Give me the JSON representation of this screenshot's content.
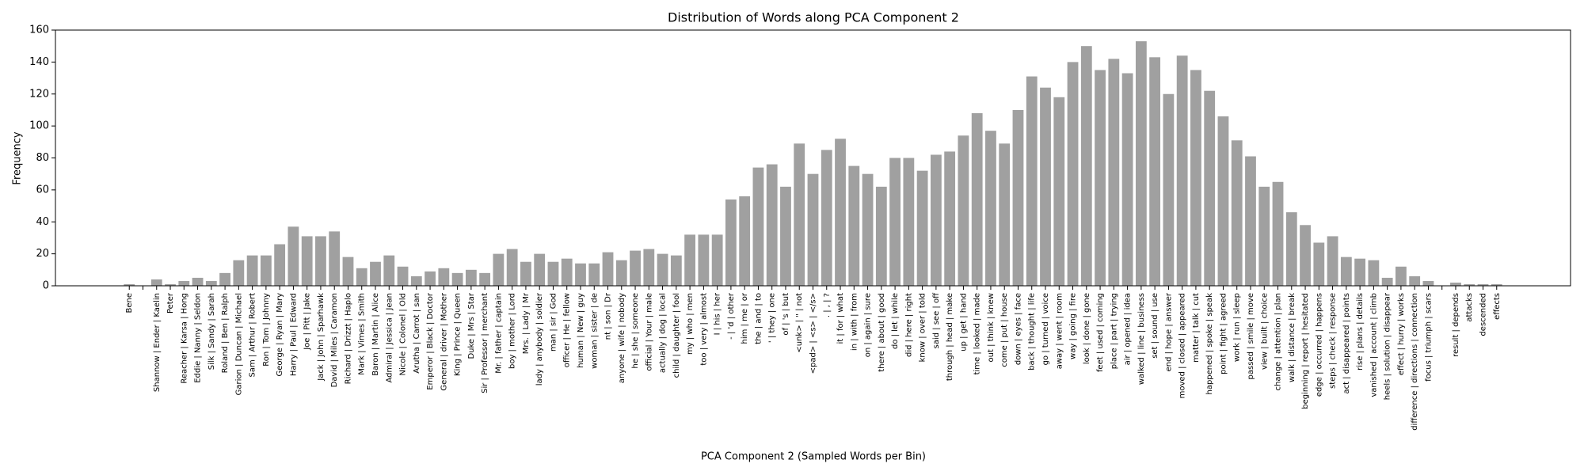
{
  "chart_data": {
    "type": "bar",
    "title": "Distribution of Words along PCA Component 2",
    "xlabel": "PCA Component 2 (Sampled Words per Bin)",
    "ylabel": "Frequency",
    "color": "#a0a0a0",
    "ylim": [
      0,
      160
    ],
    "yticks": [
      0,
      20,
      40,
      60,
      80,
      100,
      120,
      140,
      160
    ],
    "categories": [
      "Bene",
      null,
      "Shannow | Ender | Kaelin",
      "Peter",
      "Reacher | Karsa | Hong",
      "Eddie | Nanny | Seldon",
      "Silk | Sandy | Sarah",
      "Roland | Ben | Ralph",
      "Garion | Duncan | Michael",
      "Sam | Arthur | Robert",
      "Ron | Tom | Johnny",
      "George | Ryan | Mary",
      "Harry | Paul | Edward",
      "Joe | Pitt | Jake",
      "Jack | John | Sparhawk",
      "David | Miles | Caramon",
      "Richard | Drizzt | Haplo",
      "Mark | Vimes | Smith",
      "Baron | Martin | Alice",
      "Admiral | Jessica | Jean",
      "Nicole | Colonel | Old",
      "Arutha | Carrot | san",
      "Emperor | Black | Doctor",
      "General | driver | Mother",
      "King | Prince | Queen",
      "Duke | Mrs | Star",
      "Sir | Professor | merchant",
      "Mr. | father | captain",
      "boy | mother | Lord",
      "Mrs. | Lady | Mr",
      "lady | anybody | soldier",
      "man | sir | God",
      "officer | He | fellow",
      "human | New | guy",
      "woman | sister | de",
      "nt | son | Dr",
      "anyone | wife | nobody",
      "he | she | someone",
      "official | Your | male",
      "actually | dog | local",
      "child | daughter | fool",
      "my | who | men",
      "too | very | almost",
      "I | his | her",
      "- | 'd | other",
      "him | me | or",
      "the | and | to",
      "' | they | one",
      "of | 's | but",
      "<unk> | \" | not",
      "<pad> | <s> | </s>",
      ". | , | ?",
      "it | for | what",
      "in | with | from",
      "on | again | sure",
      "there | about | good",
      "do | let | while",
      "did | here | right",
      "know | over | told",
      "said | see | off",
      "through | head | make",
      "up | get | hand",
      "time | looked | made",
      "out | think | knew",
      "come | put | house",
      "down | eyes | face",
      "back | thought | life",
      "go | turned | voice",
      "away | went | room",
      "way | going | fire",
      "look | done | gone",
      "feet | used | coming",
      "place | part | trying",
      "air | opened | idea",
      "walked | line | business",
      "set | sound | use",
      "end | hope | answer",
      "moved | closed | appeared",
      "matter | talk | cut",
      "happened | spoke | speak",
      "point | fight | agreed",
      "work | run | sleep",
      "passed | smile | move",
      "view | built | choice",
      "change | attention | plan",
      "walk | distance | break",
      "beginning | report | hesitated",
      "edge | occurred | happens",
      "steps | check | response",
      "act | disappeared | points",
      "rise | plans | details",
      "vanished | account | climb",
      "heels | solution | disappear",
      "effect | hurry | works",
      "difference | directions | connection",
      "focus | triumph | scars",
      null,
      "result | depends",
      "attacks",
      "descended",
      "effects"
    ],
    "values": [
      1,
      0,
      4,
      1,
      3,
      5,
      3,
      8,
      16,
      19,
      19,
      26,
      37,
      31,
      31,
      34,
      18,
      11,
      15,
      19,
      12,
      6,
      9,
      11,
      8,
      10,
      8,
      20,
      23,
      15,
      20,
      15,
      17,
      14,
      14,
      21,
      16,
      22,
      23,
      20,
      19,
      32,
      32,
      32,
      54,
      56,
      74,
      76,
      62,
      89,
      70,
      85,
      92,
      75,
      70,
      62,
      80,
      80,
      72,
      82,
      84,
      94,
      108,
      97,
      89,
      110,
      131,
      124,
      118,
      140,
      150,
      135,
      142,
      133,
      153,
      143,
      120,
      144,
      135,
      122,
      106,
      91,
      81,
      62,
      65,
      46,
      38,
      27,
      31,
      18,
      17,
      16,
      5,
      12,
      6,
      3,
      0,
      2,
      1,
      1,
      1
    ]
  }
}
